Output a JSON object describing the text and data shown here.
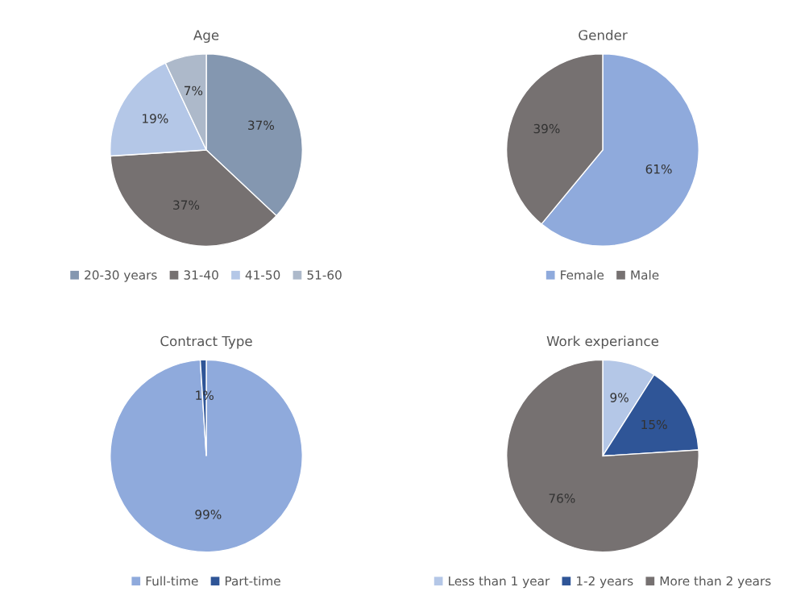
{
  "chart_data": [
    {
      "type": "pie",
      "title": "Age",
      "categories": [
        "20-30 years",
        "31-40",
        "41-50",
        "51-60"
      ],
      "values": [
        37,
        37,
        19,
        7
      ],
      "value_labels": [
        "37%",
        "37%",
        "19%",
        "7%"
      ],
      "colors": [
        "#8497b0",
        "#767171",
        "#b4c7e7",
        "#adb9ca"
      ],
      "legend": "bottom"
    },
    {
      "type": "pie",
      "title": "Gender",
      "categories": [
        "Female",
        "Male"
      ],
      "values": [
        61,
        39
      ],
      "value_labels": [
        "61%",
        "39%"
      ],
      "colors": [
        "#8faadc",
        "#767171"
      ],
      "legend": "bottom"
    },
    {
      "type": "pie",
      "title": "Contract Type",
      "categories": [
        "Full-time",
        "Part-time"
      ],
      "values": [
        99,
        1
      ],
      "value_labels": [
        "99%",
        "1%"
      ],
      "colors": [
        "#8faadc",
        "#2f5597"
      ],
      "legend": "bottom"
    },
    {
      "type": "pie",
      "title": "Work experiance",
      "categories": [
        "Less than 1 year",
        "1-2 years",
        "More than 2 years"
      ],
      "values": [
        9,
        15,
        76
      ],
      "value_labels": [
        "9%",
        "15%",
        "76%"
      ],
      "colors": [
        "#b4c7e7",
        "#2f5597",
        "#767171"
      ],
      "legend": "bottom"
    }
  ]
}
